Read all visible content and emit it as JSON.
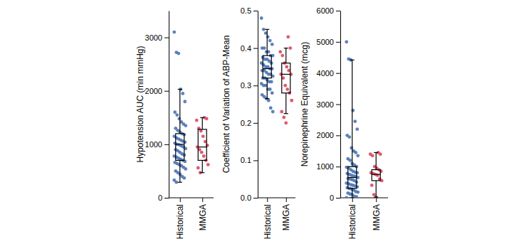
{
  "chart_data": [
    {
      "type": "box",
      "ylabel": "Hypotension AUC (min mmHg)",
      "categories": [
        "Historical",
        "MMGA"
      ],
      "colors": [
        "#4a74b4",
        "#d9485f"
      ],
      "ylim": [
        0,
        3500
      ],
      "yticks": [
        0,
        1000,
        2000,
        3000
      ],
      "boxes": [
        {
          "low": 290,
          "q1": 700,
          "median": 1000,
          "q3": 1200,
          "high": 2030
        },
        {
          "low": 470,
          "q1": 700,
          "median": 950,
          "q3": 1280,
          "high": 1500
        }
      ],
      "values": [
        [
          3100,
          2720,
          2700,
          2030,
          1950,
          1800,
          1600,
          1550,
          1480,
          1420,
          1380,
          1350,
          1300,
          1260,
          1230,
          1200,
          1180,
          1150,
          1120,
          1100,
          1080,
          1060,
          1040,
          1020,
          1000,
          990,
          970,
          950,
          920,
          900,
          880,
          850,
          820,
          800,
          780,
          760,
          740,
          720,
          700,
          680,
          660,
          640,
          620,
          600,
          570,
          540,
          500,
          470,
          440,
          400,
          370,
          330,
          290
        ],
        [
          1500,
          1480,
          1450,
          1300,
          1250,
          1150,
          1050,
          980,
          950,
          900,
          850,
          780,
          700,
          620,
          560,
          470
        ]
      ]
    },
    {
      "type": "box",
      "ylabel": "Coefficient of Variation of ABP-Mean",
      "categories": [
        "Historical",
        "MMGA"
      ],
      "colors": [
        "#4a74b4",
        "#d9485f"
      ],
      "ylim": [
        0,
        0.5
      ],
      "yticks": [
        {
          "value": 0,
          "label": "0.0"
        },
        0.1,
        0.2,
        0.3,
        0.4,
        0.5
      ],
      "boxes": [
        {
          "low": 0.265,
          "q1": 0.32,
          "median": 0.345,
          "q3": 0.38,
          "high": 0.45
        },
        {
          "low": 0.225,
          "q1": 0.28,
          "median": 0.33,
          "q3": 0.36,
          "high": 0.4
        }
      ],
      "values": [
        [
          0.48,
          0.45,
          0.44,
          0.43,
          0.42,
          0.41,
          0.4,
          0.4,
          0.39,
          0.39,
          0.38,
          0.38,
          0.375,
          0.37,
          0.37,
          0.365,
          0.36,
          0.36,
          0.355,
          0.35,
          0.35,
          0.345,
          0.345,
          0.34,
          0.34,
          0.335,
          0.33,
          0.33,
          0.325,
          0.32,
          0.32,
          0.315,
          0.31,
          0.31,
          0.305,
          0.3,
          0.3,
          0.29,
          0.29,
          0.28,
          0.275,
          0.27,
          0.265,
          0.26,
          0.24,
          0.23
        ],
        [
          0.43,
          0.4,
          0.39,
          0.38,
          0.36,
          0.35,
          0.34,
          0.33,
          0.33,
          0.32,
          0.3,
          0.29,
          0.28,
          0.26,
          0.23,
          0.215,
          0.2
        ]
      ]
    },
    {
      "type": "box",
      "ylabel": "Norepinephrine Equivalent (mcg)",
      "categories": [
        "Historical",
        "MMGA"
      ],
      "colors": [
        "#4a74b4",
        "#d9485f"
      ],
      "ylim": [
        0,
        6000
      ],
      "yticks": [
        0,
        1000,
        2000,
        3000,
        4000,
        5000,
        6000
      ],
      "boxes": [
        {
          "low": 0,
          "q1": 300,
          "median": 650,
          "q3": 1000,
          "high": 4420
        },
        {
          "low": 20,
          "q1": 550,
          "median": 750,
          "q3": 900,
          "high": 1450
        }
      ],
      "values": [
        [
          5000,
          4450,
          4420,
          2800,
          2450,
          2200,
          2000,
          1950,
          1600,
          1500,
          1450,
          1350,
          1250,
          1200,
          1100,
          1050,
          1000,
          980,
          950,
          900,
          850,
          820,
          800,
          780,
          750,
          720,
          700,
          680,
          650,
          620,
          600,
          580,
          550,
          500,
          470,
          450,
          420,
          400,
          380,
          350,
          320,
          300,
          280,
          250,
          200,
          180,
          150,
          120,
          100,
          50,
          30,
          0
        ],
        [
          1450,
          1400,
          1400,
          1350,
          1000,
          950,
          900,
          850,
          800,
          780,
          750,
          720,
          600,
          550,
          400,
          100,
          20
        ]
      ]
    }
  ]
}
